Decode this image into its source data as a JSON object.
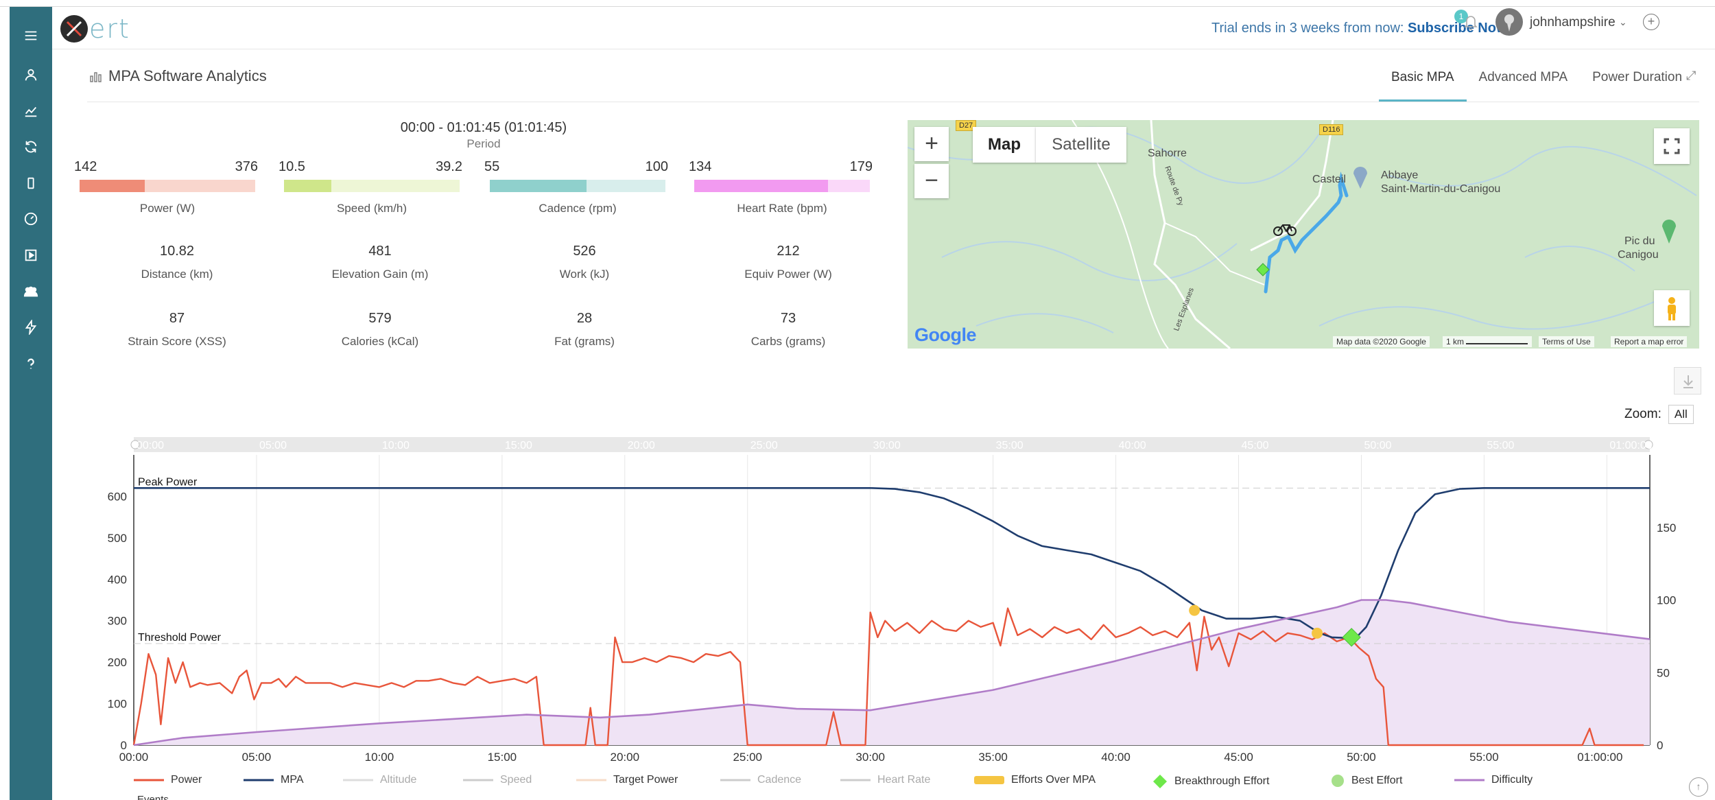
{
  "app": {
    "logo_text": "ert",
    "title": "MPA Software Analytics"
  },
  "sidebar": {
    "items": [
      {
        "name": "menu",
        "icon": "hamburger-menu-icon"
      },
      {
        "name": "profile",
        "icon": "user-icon"
      },
      {
        "name": "analytics",
        "icon": "line-chart-icon"
      },
      {
        "name": "sync",
        "icon": "refresh-icon"
      },
      {
        "name": "devices",
        "icon": "mobile-device-icon"
      },
      {
        "name": "dashboard",
        "icon": "speedometer-icon"
      },
      {
        "name": "workouts",
        "icon": "play-square-icon"
      },
      {
        "name": "teams",
        "icon": "group-icon"
      },
      {
        "name": "power",
        "icon": "lightning-icon"
      },
      {
        "name": "help",
        "icon": "question-icon"
      }
    ]
  },
  "header": {
    "trial_text": "Trial ends in 3 weeks from now: ",
    "subscribe_label": "Subscribe Now!",
    "notification_count": "1",
    "username": "johnhampshire"
  },
  "tabs": [
    {
      "label": "Basic MPA",
      "active": true
    },
    {
      "label": "Advanced MPA",
      "active": false
    },
    {
      "label": "Power Duration",
      "active": false
    }
  ],
  "period": {
    "range": "00:00 - 01:01:45 (01:01:45)",
    "label": "Period"
  },
  "gauges": [
    {
      "label": "Power (W)",
      "min": "142",
      "max": "376",
      "fill": 0.37,
      "color": "#ef8c77",
      "track": "#f9d6cd"
    },
    {
      "label": "Speed (km/h)",
      "min": "10.5",
      "max": "39.2",
      "fill": 0.27,
      "color": "#cfe68a",
      "track": "#eef6d6"
    },
    {
      "label": "Cadence (rpm)",
      "min": "55",
      "max": "100",
      "fill": 0.55,
      "color": "#8fd0cc",
      "track": "#d8eeec"
    },
    {
      "label": "Heart Rate (bpm)",
      "min": "134",
      "max": "179",
      "fill": 0.76,
      "color": "#f29af0",
      "track": "#fad8f9"
    }
  ],
  "stats": [
    {
      "value": "10.82",
      "label": "Distance (km)"
    },
    {
      "value": "481",
      "label": "Elevation Gain (m)"
    },
    {
      "value": "526",
      "label": "Work (kJ)"
    },
    {
      "value": "212",
      "label": "Equiv Power (W)"
    },
    {
      "value": "87",
      "label": "Strain Score (XSS)"
    },
    {
      "value": "579",
      "label": "Calories (kCal)"
    },
    {
      "value": "28",
      "label": "Fat (grams)"
    },
    {
      "value": "73",
      "label": "Carbs (grams)"
    }
  ],
  "map": {
    "map_label": "Map",
    "satellite_label": "Satellite",
    "zoom_in": "+",
    "zoom_out": "−",
    "places": [
      "Sahorre",
      "Casteil",
      "Abbaye",
      "Saint-Martin-du-Canigou",
      "Pic du",
      "Canigou"
    ],
    "roads": [
      "D27",
      "D116",
      "Route de Py",
      "Les Esplanes"
    ],
    "footer": {
      "map_data": "Map data ©2020 Google",
      "scale": "1 km",
      "terms": "Terms of Use",
      "report": "Report a map error"
    },
    "google_label": "Google",
    "route_color": "#4aa8e8"
  },
  "zoom": {
    "label": "Zoom:",
    "value": "All"
  },
  "chart_data": {
    "type": "line",
    "x_unit": "minutes",
    "x_ticks": [
      "00:00",
      "05:00",
      "10:00",
      "15:00",
      "20:00",
      "25:00",
      "30:00",
      "35:00",
      "40:00",
      "45:00",
      "50:00",
      "55:00",
      "01:00:00"
    ],
    "navigator_ticks": [
      "00:00",
      "05:00",
      "10:00",
      "15:00",
      "20:00",
      "25:00",
      "30:00",
      "35:00",
      "40:00",
      "45:00",
      "50:00",
      "55:00",
      "01:00:00"
    ],
    "xlim": [
      0,
      61.75
    ],
    "y_left": {
      "ticks": [
        "0",
        "100",
        "200",
        "300",
        "400",
        "500",
        "600"
      ],
      "range": [
        0,
        700
      ]
    },
    "y_right": {
      "ticks": [
        "0",
        "50",
        "100",
        "150"
      ],
      "range": [
        0,
        200
      ]
    },
    "plot_lines": [
      {
        "label": "Peak Power",
        "value": 620
      },
      {
        "label": "Threshold Power",
        "value": 245
      }
    ],
    "series": [
      {
        "name": "Power",
        "color": "#e8553a",
        "axis": "left",
        "points": [
          [
            0,
            0
          ],
          [
            0.3,
            100
          ],
          [
            0.6,
            220
          ],
          [
            0.9,
            170
          ],
          [
            1.1,
            50
          ],
          [
            1.4,
            210
          ],
          [
            1.7,
            150
          ],
          [
            2.0,
            200
          ],
          [
            2.3,
            140
          ],
          [
            2.7,
            150
          ],
          [
            3.0,
            145
          ],
          [
            3.5,
            150
          ],
          [
            4.0,
            125
          ],
          [
            4.3,
            165
          ],
          [
            4.6,
            180
          ],
          [
            4.9,
            110
          ],
          [
            5.2,
            150
          ],
          [
            5.6,
            150
          ],
          [
            5.9,
            160
          ],
          [
            6.2,
            140
          ],
          [
            6.6,
            165
          ],
          [
            7.0,
            150
          ],
          [
            7.5,
            150
          ],
          [
            8.0,
            150
          ],
          [
            8.5,
            140
          ],
          [
            9.0,
            150
          ],
          [
            9.5,
            145
          ],
          [
            10.0,
            140
          ],
          [
            10.5,
            150
          ],
          [
            11.0,
            140
          ],
          [
            11.5,
            155
          ],
          [
            12.0,
            155
          ],
          [
            12.5,
            160
          ],
          [
            13.0,
            150
          ],
          [
            13.5,
            145
          ],
          [
            14.0,
            165
          ],
          [
            14.5,
            150
          ],
          [
            15.0,
            155
          ],
          [
            15.5,
            160
          ],
          [
            16.0,
            150
          ],
          [
            16.4,
            165
          ],
          [
            16.7,
            0
          ],
          [
            18.4,
            0
          ],
          [
            18.6,
            90
          ],
          [
            18.8,
            0
          ],
          [
            19.3,
            0
          ],
          [
            19.6,
            260
          ],
          [
            19.9,
            200
          ],
          [
            20.3,
            200
          ],
          [
            20.8,
            210
          ],
          [
            21.3,
            200
          ],
          [
            21.8,
            215
          ],
          [
            22.3,
            210
          ],
          [
            22.8,
            200
          ],
          [
            23.3,
            220
          ],
          [
            23.8,
            215
          ],
          [
            24.3,
            225
          ],
          [
            24.7,
            200
          ],
          [
            25.0,
            0
          ],
          [
            28.2,
            0
          ],
          [
            28.5,
            80
          ],
          [
            28.8,
            0
          ],
          [
            29.8,
            0
          ],
          [
            30.0,
            320
          ],
          [
            30.3,
            260
          ],
          [
            30.6,
            300
          ],
          [
            31.0,
            275
          ],
          [
            31.5,
            295
          ],
          [
            32.0,
            270
          ],
          [
            32.5,
            300
          ],
          [
            33.0,
            280
          ],
          [
            33.5,
            275
          ],
          [
            34.0,
            300
          ],
          [
            34.5,
            285
          ],
          [
            35.0,
            295
          ],
          [
            35.3,
            240
          ],
          [
            35.6,
            330
          ],
          [
            36.0,
            265
          ],
          [
            36.5,
            280
          ],
          [
            37.0,
            260
          ],
          [
            37.5,
            285
          ],
          [
            38.0,
            270
          ],
          [
            38.5,
            280
          ],
          [
            39.0,
            255
          ],
          [
            39.5,
            290
          ],
          [
            40.0,
            260
          ],
          [
            40.5,
            270
          ],
          [
            41.0,
            285
          ],
          [
            41.5,
            265
          ],
          [
            42.0,
            275
          ],
          [
            42.5,
            260
          ],
          [
            43.0,
            295
          ],
          [
            43.3,
            180
          ],
          [
            43.6,
            310
          ],
          [
            43.9,
            230
          ],
          [
            44.2,
            260
          ],
          [
            44.6,
            190
          ],
          [
            45.0,
            270
          ],
          [
            45.5,
            255
          ],
          [
            46.0,
            275
          ],
          [
            46.5,
            250
          ],
          [
            47.0,
            270
          ],
          [
            47.5,
            265
          ],
          [
            48.0,
            255
          ],
          [
            48.5,
            270
          ],
          [
            49.0,
            250
          ],
          [
            49.5,
            260
          ],
          [
            49.9,
            235
          ],
          [
            50.3,
            215
          ],
          [
            50.6,
            160
          ],
          [
            50.9,
            140
          ],
          [
            51.1,
            0
          ],
          [
            59.0,
            0
          ],
          [
            59.3,
            40
          ],
          [
            59.5,
            0
          ],
          [
            61.5,
            0
          ]
        ]
      },
      {
        "name": "MPA",
        "color": "#1f3d6e",
        "axis": "left",
        "points": [
          [
            0,
            620
          ],
          [
            30,
            620
          ],
          [
            31,
            618
          ],
          [
            32,
            610
          ],
          [
            33,
            595
          ],
          [
            34,
            570
          ],
          [
            35,
            540
          ],
          [
            36,
            505
          ],
          [
            37,
            480
          ],
          [
            38,
            470
          ],
          [
            39,
            460
          ],
          [
            40,
            440
          ],
          [
            41,
            420
          ],
          [
            42,
            385
          ],
          [
            43,
            345
          ],
          [
            43.5,
            325
          ],
          [
            44.5,
            305
          ],
          [
            45.5,
            305
          ],
          [
            46.5,
            310
          ],
          [
            47.5,
            300
          ],
          [
            48.3,
            270
          ],
          [
            48.8,
            260
          ],
          [
            49.6,
            258
          ],
          [
            49.8,
            260
          ],
          [
            50.2,
            285
          ],
          [
            50.8,
            360
          ],
          [
            51.5,
            470
          ],
          [
            52.2,
            560
          ],
          [
            53,
            605
          ],
          [
            54,
            618
          ],
          [
            55,
            620
          ],
          [
            61.75,
            620
          ]
        ]
      },
      {
        "name": "Difficulty",
        "color": "#b07cc8",
        "fill": "#efe3f5",
        "axis": "right",
        "points": [
          [
            0,
            0
          ],
          [
            2,
            5
          ],
          [
            5,
            9
          ],
          [
            10,
            15
          ],
          [
            15,
            20
          ],
          [
            16,
            21
          ],
          [
            19,
            19
          ],
          [
            21,
            21
          ],
          [
            25,
            28
          ],
          [
            27,
            25
          ],
          [
            30,
            24
          ],
          [
            35,
            38
          ],
          [
            40,
            58
          ],
          [
            45,
            80
          ],
          [
            49,
            95
          ],
          [
            50,
            100
          ],
          [
            51,
            100
          ],
          [
            52,
            98
          ],
          [
            56,
            85
          ],
          [
            61.75,
            73
          ]
        ]
      }
    ],
    "markers": [
      {
        "type": "Efforts Over MPA",
        "x": 43.2,
        "y": 325,
        "color": "#f5c542"
      },
      {
        "type": "Efforts Over MPA",
        "x": 48.2,
        "y": 270,
        "color": "#f5c542"
      },
      {
        "type": "Breakthrough Effort",
        "x": 49.6,
        "y": 260,
        "color": "#6ee84a"
      }
    ],
    "legend": [
      {
        "name": "Power",
        "color": "#e8553a",
        "kind": "line",
        "enabled": true
      },
      {
        "name": "MPA",
        "color": "#1f3d6e",
        "kind": "line",
        "enabled": true
      },
      {
        "name": "Altitude",
        "color": "#dddddd",
        "kind": "line",
        "enabled": false
      },
      {
        "name": "Speed",
        "color": "#cccccc",
        "kind": "line",
        "enabled": false
      },
      {
        "name": "Target Power",
        "color": "#f7dcc8",
        "kind": "line",
        "enabled": true
      },
      {
        "name": "Cadence",
        "color": "#cccccc",
        "kind": "line",
        "enabled": false
      },
      {
        "name": "Heart Rate",
        "color": "#cccccc",
        "kind": "line",
        "enabled": false
      },
      {
        "name": "Efforts Over MPA",
        "color": "#f5c542",
        "kind": "box",
        "enabled": true
      },
      {
        "name": "Breakthrough Effort",
        "color": "#6ee84a",
        "kind": "diamond",
        "enabled": true
      },
      {
        "name": "Best Effort",
        "color": "#a6e08a",
        "kind": "circle",
        "enabled": true
      },
      {
        "name": "Difficulty",
        "color": "#b07cc8",
        "kind": "line",
        "enabled": true
      }
    ],
    "events_label": "Events"
  }
}
